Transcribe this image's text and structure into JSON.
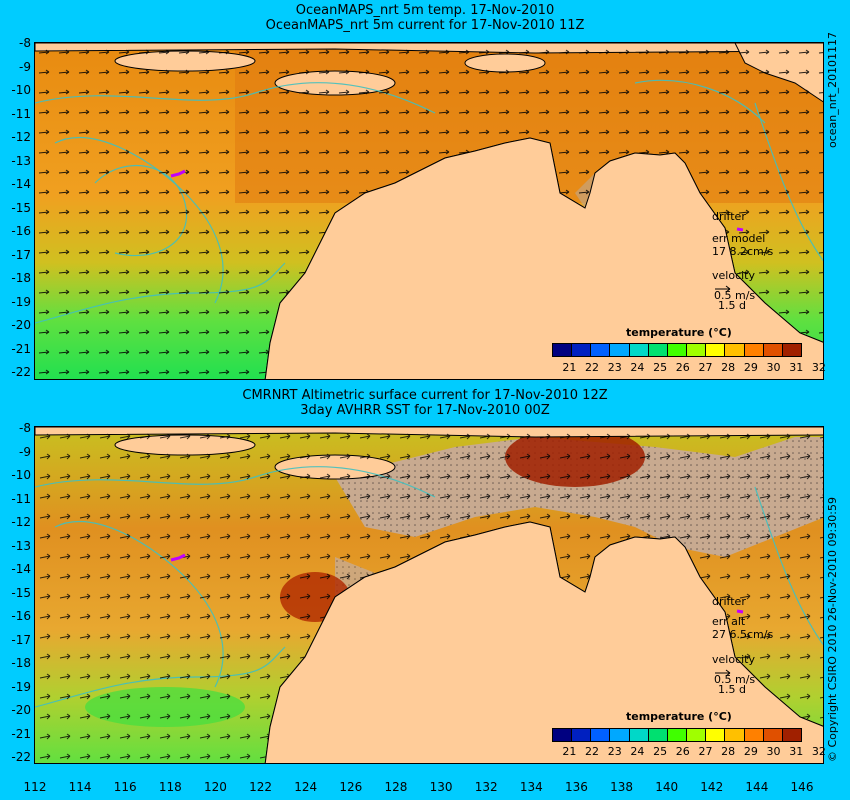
{
  "panel_top": {
    "title_line1": "OceanMAPS_nrt 5m temp. 17-Nov-2010",
    "title_line2": "OceanMAPS_nrt 5m current for 17-Nov-2010 11Z",
    "side_label": "ocean_nrt_20101117",
    "drifter_label": "drifter",
    "err_label": "err model",
    "err_value": "17 8.2cm/s",
    "velocity_label": "velocity",
    "velocity_scale": "0.5 m/s",
    "velocity_time": "1.5 d",
    "colorbar_title": "temperature (°C)"
  },
  "panel_bottom": {
    "title_line1": "CMRNRT Altimetric surface current for 17-Nov-2010 12Z",
    "title_line2": "3day AVHRR SST for 17-Nov-2010 00Z",
    "side_label": "© Copyright CSIRO 2010   26-Nov-2010 09:30:59",
    "drifter_label": "drifter",
    "err_label": "err alt",
    "err_value": "27 6.5cm/s",
    "velocity_label": "velocity",
    "velocity_scale": "0.5 m/s",
    "velocity_time": "1.5 d",
    "colorbar_title": "temperature (°C)"
  },
  "axes": {
    "lat_ticks": [
      "-8",
      "-9",
      "-10",
      "-11",
      "-12",
      "-13",
      "-14",
      "-15",
      "-16",
      "-17",
      "-18",
      "-19",
      "-20",
      "-21",
      "-22"
    ],
    "lon_ticks": [
      "112",
      "114",
      "116",
      "118",
      "120",
      "122",
      "124",
      "126",
      "128",
      "130",
      "132",
      "134",
      "136",
      "138",
      "140",
      "142",
      "144",
      "146"
    ]
  },
  "colorbar": {
    "ticks": [
      "21",
      "22",
      "23",
      "24",
      "25",
      "26",
      "27",
      "28",
      "29",
      "30",
      "31",
      "32"
    ],
    "colors": [
      "#000080",
      "#0020c0",
      "#0060ff",
      "#00a8ff",
      "#00d8c8",
      "#00e070",
      "#40ff00",
      "#a0ff00",
      "#ffff00",
      "#ffc000",
      "#ff8000",
      "#e05000",
      "#a02000"
    ]
  },
  "colors": {
    "land": "#ffcc99",
    "sea_warm": "#e88a10",
    "sea_mid": "#f0a820",
    "sea_cool": "#c8d020",
    "sea_cold": "#30e040",
    "cloud": "#c8aa90",
    "contour": "#40c0c0",
    "drifter": "#c000ff"
  }
}
